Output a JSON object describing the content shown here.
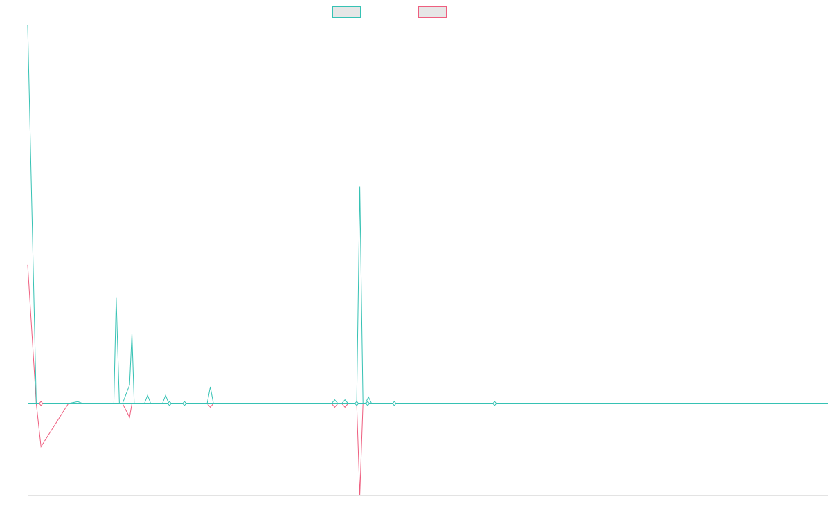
{
  "chart_data": {
    "type": "line",
    "title": "",
    "xlabel": "",
    "ylabel": "",
    "grid": false,
    "legend": "top-center",
    "ylim": [
      -1,
      4.1
    ],
    "x": [
      0,
      11,
      17,
      52,
      64,
      70,
      110,
      113,
      117,
      121,
      130,
      133,
      136,
      149,
      153,
      157,
      172,
      176,
      180,
      229,
      233,
      237,
      388,
      392,
      396,
      401,
      405,
      409,
      420,
      424,
      428,
      431,
      435,
      439,
      450,
      453,
      457,
      550,
      553,
      557,
      1021
    ],
    "series": [
      {
        "name": "",
        "color": "#36c2b4",
        "values": [
          4.1,
          0,
          0,
          0,
          0.02,
          0,
          0,
          1.15,
          0,
          0,
          0.2,
          0.76,
          0,
          0,
          0.09,
          0,
          0,
          0.09,
          0,
          0,
          0.18,
          0,
          0,
          0.04,
          0,
          0,
          0.04,
          0,
          0,
          2.35,
          0,
          0,
          0.07,
          0,
          0,
          0,
          0,
          0,
          0,
          0,
          0
        ]
      },
      {
        "name": "",
        "color": "#ee5e7f",
        "values": [
          1.5,
          0,
          -0.47,
          0,
          0,
          0,
          0,
          0,
          0,
          0,
          -0.15,
          0,
          0,
          0,
          0,
          0,
          0,
          0,
          0,
          0,
          -0.04,
          0,
          0,
          -0.04,
          0,
          0,
          -0.04,
          0,
          0,
          -1.0,
          0,
          0,
          0,
          0,
          0,
          0,
          0,
          0,
          0,
          0,
          0
        ]
      }
    ]
  },
  "diamonds": [
    {
      "series": 1,
      "x": 17
    },
    {
      "series": 0,
      "x": 181
    },
    {
      "series": 0,
      "x": 200
    },
    {
      "series": 0,
      "x": 420
    },
    {
      "series": 0,
      "x": 434
    },
    {
      "series": 0,
      "x": 468
    },
    {
      "series": 0,
      "x": 596
    }
  ],
  "x_extent": [
    0,
    1021
  ]
}
